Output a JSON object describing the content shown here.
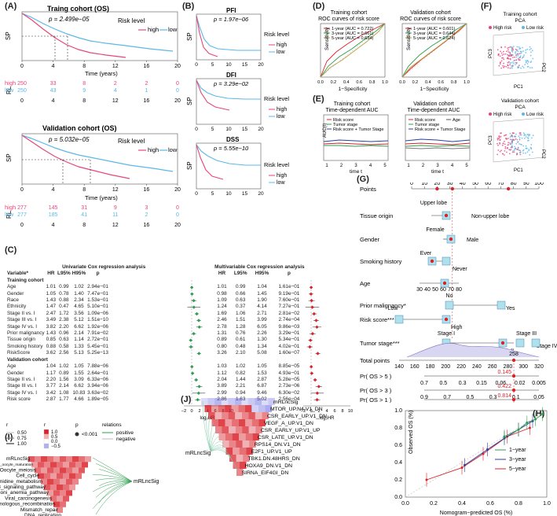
{
  "panels": {
    "A": "(A)",
    "B": "(B)",
    "C": "(C)",
    "D": "(D)",
    "E": "(E)",
    "F": "(F)",
    "G": "(G)",
    "H": "(H)",
    "I": "(I)",
    "J": "(J)"
  },
  "panelA": {
    "train_title": "Traing cohort (OS)",
    "train_p": "p = 2.499e−05",
    "valid_title": "Validation cohort (OS)",
    "valid_p": "p = 5.032e−05",
    "sp": "SP",
    "rl": "RL",
    "xlabel": "Time (years)",
    "legend_title": "Risk level",
    "legend_high": "high",
    "legend_low": "low",
    "ticks": [
      "0",
      "4",
      "8",
      "12",
      "16",
      "20"
    ],
    "train_high": [
      "250",
      "33",
      "8",
      "2",
      "2",
      "0"
    ],
    "train_low": [
      "250",
      "43",
      "9",
      "4",
      "1",
      "0"
    ],
    "valid_high": [
      "277",
      "145",
      "31",
      "9",
      "3",
      "0"
    ],
    "valid_low": [
      "277",
      "185",
      "41",
      "11",
      "2",
      "0"
    ],
    "yticks": [
      "0.00",
      "0.25",
      "0.50",
      "0.75",
      "1.00"
    ]
  },
  "panelB": {
    "pfi_title": "PFI",
    "pfi_p": "p = 1.97e−06",
    "dfi_title": "DFI",
    "dfi_p": "p = 3.29e−02",
    "dss_title": "DSS",
    "dss_p": "p = 5.55e−10",
    "sp": "SP",
    "risk_level": "Risk level",
    "high": "high",
    "low": "low",
    "xticks": [
      "0",
      "5",
      "10",
      "15",
      "20"
    ]
  },
  "panelD": {
    "t1": "Training cohort",
    "t1b": "ROC curves of risk score",
    "t2": "Validation cohort",
    "t2b": "ROC curves of risk score",
    "tr_l1": "1-year (AUC = 0.722)",
    "tr_l2": "3-year (AUC = 0.661)",
    "tr_l3": "5-year (AUC = 0.634)",
    "va_l1": "1-year (AUC = 0.601)",
    "va_l2": "3-year (AUC = 0.644)",
    "va_l3": "5-year (AUC = 0.624)",
    "xlab": "1−Specificity",
    "ylab": "Sensitivity",
    "ticks": [
      "0.0",
      "0.2",
      "0.4",
      "0.6",
      "0.8",
      "1.0"
    ]
  },
  "panelE": {
    "t1": "Training cohort",
    "t1b": "Time-dependent AUC",
    "t2": "Validation cohort",
    "t2b": "Time-dependent AUC",
    "l1": "Risk score",
    "l2": "Tumor stage",
    "l3": "Risk score + Tumor Stage",
    "l4": "Age",
    "xlab": "time t",
    "ylab": "AUC(t)",
    "xticks": [
      "1",
      "2",
      "3",
      "4",
      "5"
    ],
    "yticks": [
      "0.2",
      "0.4",
      "0.6",
      "0.8",
      "1.0"
    ]
  },
  "panelF": {
    "t1": "Training cohort",
    "t1b": "PCA",
    "t2": "Validation cohort",
    "t2b": "PCA",
    "high": "High risk",
    "low": "Low risk",
    "pc1": "PC1",
    "pc2": "PC2",
    "pc3": "PC3"
  },
  "panelC": {
    "uni_header": "Univariate Cox regression analysis",
    "multi_header": "Multivariable Cox regression analysis",
    "col_var": "Variable*",
    "col_hr": "HR",
    "col_l95": "L95%",
    "col_h95": "H95%",
    "col_p": "p",
    "xlabel": "log₂HR",
    "axis_ticks": [
      "−2",
      "0",
      "2",
      "4",
      "6",
      "8",
      "10"
    ],
    "train_label": "Training cohort",
    "valid_label": "Validation cohort",
    "train_rows": [
      [
        "Age",
        "1.01",
        "0.99",
        "1.02",
        "2.94e−01",
        "1.01",
        "0.99",
        "1.04",
        "1.61e−01"
      ],
      [
        "Gender",
        "1.05",
        "0.78",
        "1.40",
        "7.47e−01",
        "0.98",
        "0.66",
        "1.45",
        "9.19e−01"
      ],
      [
        "Race",
        "1.43",
        "0.88",
        "2.34",
        "1.53e−01",
        "1.09",
        "0.63",
        "1.90",
        "7.60e−01"
      ],
      [
        "Ethnicity",
        "1.47",
        "0.47",
        "4.65",
        "5.10e−01",
        "1.24",
        "0.37",
        "4.14",
        "7.27e−01"
      ],
      [
        "Stage II vs. I",
        "2.47",
        "1.72",
        "3.56",
        "1.09e−06",
        "1.69",
        "1.06",
        "2.71",
        "2.81e−02"
      ],
      [
        "Stage III vs. I",
        "3.49",
        "2.38",
        "5.12",
        "1.51e−10",
        "2.46",
        "1.51",
        "3.99",
        "2.74e−04"
      ],
      [
        "Stage IV vs. I",
        "3.82",
        "2.20",
        "6.62",
        "1.92e−06",
        "2.78",
        "1.28",
        "6.05",
        "9.86e−03"
      ],
      [
        "Prior malignancy",
        "1.43",
        "0.96",
        "2.14",
        "7.91e−02",
        "1.31",
        "0.76",
        "2.26",
        "3.29e−01"
      ],
      [
        "Tissue origin",
        "0.85",
        "0.63",
        "1.14",
        "2.72e−01",
        "0.89",
        "0.61",
        "1.30",
        "5.34e−01"
      ],
      [
        "Smoking history",
        "0.88",
        "0.58",
        "1.33",
        "5.45e−01",
        "0.80",
        "0.48",
        "1.34",
        "4.02e−01"
      ],
      [
        "RiskScore",
        "3.62",
        "2.56",
        "5.13",
        "5.25e−13",
        "3.26",
        "2.10",
        "5.08",
        "1.60e−07"
      ]
    ],
    "valid_rows": [
      [
        "Age",
        "1.04",
        "1.02",
        "1.05",
        "7.88e−06",
        "1.03",
        "1.02",
        "1.05",
        "8.85e−05"
      ],
      [
        "Gender",
        "1.17",
        "0.89",
        "1.55",
        "2.64e−01",
        "1.12",
        "0.82",
        "1.53",
        "4.93e−01"
      ],
      [
        "Stage II vs. I",
        "2.20",
        "1.56",
        "3.09",
        "6.33e−06",
        "2.04",
        "1.44",
        "2.87",
        "5.28e−05"
      ],
      [
        "Stage III vs. I",
        "3.77",
        "2.14",
        "6.62",
        "3.94e−06",
        "3.89",
        "2.21",
        "6.87",
        "2.73e−06"
      ],
      [
        "Stage IV vs. I",
        "3.42",
        "1.08",
        "10.83",
        "3.63e−02",
        "2.99",
        "0.94",
        "9.46",
        "6.30e−02"
      ],
      [
        "Risk score",
        "2.87",
        "1.77",
        "4.66",
        "1.89e−05",
        "2.86",
        "1.63",
        "5.02",
        "2.56e−04"
      ]
    ]
  },
  "panelG": {
    "points": "Points",
    "points_ticks": [
      "0",
      "10",
      "20",
      "30",
      "40",
      "50",
      "60",
      "70",
      "80",
      "90",
      "100"
    ],
    "tissue": "Tissue origin",
    "upper": "Upper lobe",
    "nonupper": "Non-upper lobe",
    "gender": "Gender",
    "female": "Female",
    "male": "Male",
    "smoking": "Smoking history",
    "ever": "Ever",
    "never": "Never",
    "age": "Age",
    "age_ticks": [
      "30",
      "40",
      "50",
      "60",
      "70",
      "80"
    ],
    "prior": "Prior malignancy*",
    "no": "No",
    "yes": "Yes",
    "risk": "Risk score***",
    "risk_low": "Low",
    "risk_high": "High",
    "stage": "Tumor stage***",
    "stage1": "Stage I",
    "stage2": "Stage II",
    "stage3": "Stage III",
    "stage4": "Stage IV",
    "total": "Total points",
    "total_ticks": [
      "140",
      "160",
      "180",
      "200",
      "220",
      "240",
      "260",
      "280",
      "300",
      "320"
    ],
    "total_value": "258",
    "pr5": "Pr( OS > 5 )",
    "pr3": "Pr( OS > 3 )",
    "pr1": "Pr( OS > 1 )",
    "pr5_ticks": [
      "0.7",
      "0.5",
      "0.3",
      "0.15",
      "0.06",
      "0.02",
      "0.005"
    ],
    "pr3_ticks": [
      "0.9",
      "0.7",
      "0.5",
      "0.3",
      "0.1",
      "0.05"
    ],
    "pr1_ticks": [
      "0.96",
      "0.94",
      "0.92",
      "0.85",
      "0.75",
      "0.65",
      "0.55"
    ],
    "pr5_value": "0.145",
    "pr3_value": "0.422",
    "pr1_value": "0.814"
  },
  "panelH": {
    "xlab": "Nomogram−predicted OS (%)",
    "ylab": "Observed OS (%)",
    "ticks": [
      "0.0",
      "0.2",
      "0.4",
      "0.6",
      "0.8",
      "1.0"
    ],
    "l1": "1−year",
    "l3": "3−year",
    "l5": "5−year"
  },
  "panelI": {
    "legend_r": "r",
    "legend_p": "p",
    "legend_rel": "relations",
    "r_sizes": [
      "0.50",
      "0.75",
      "1.00"
    ],
    "r_colors": [
      "1.0",
      "0.5",
      "0.0",
      "−0.5"
    ],
    "p_item": "<0.001",
    "rel_pos": "positive",
    "rel_neg": "negative",
    "hub": "mRLncSig",
    "labels": [
      "mRLncSig",
      "Progesterone-mediated_oocyte_maturation",
      "Oocyte_meiosis",
      "Cell_cycle",
      "Pyrimidine_metabolism",
      "p53_signaling_pathway",
      "Fanconi_anemia_pathway",
      "Viral_carcinogenesis",
      "Homologous_recombination",
      "Mismatch_repair",
      "DNA_replication"
    ]
  },
  "panelJ": {
    "hub": "mRLncSig",
    "labels": [
      "mRLncSig",
      "MTOR_UP.N4.V1_DN",
      "CSR_EARLY_UP.V1_DN",
      "VEGF_A_UP.V1_DN",
      "CSR_EARLY_UP.V1_UP",
      "CSR_LATE_UP.V1_DN",
      "RPS14_DN.V1_DN",
      "E2F1_UP.V1_UP",
      "TBK1.DN.48HRS_DN",
      "HOXA9_DN.V1_DN",
      "SIRNA_EIF4GI_DN"
    ]
  },
  "colors": {
    "high": "#e8457a",
    "low": "#5bb8e8",
    "green": "#2e9e50",
    "red": "#d8232a",
    "blue": "#2c3fa0",
    "purple": "#7b3fa0",
    "cyan": "#aee0ee"
  }
}
